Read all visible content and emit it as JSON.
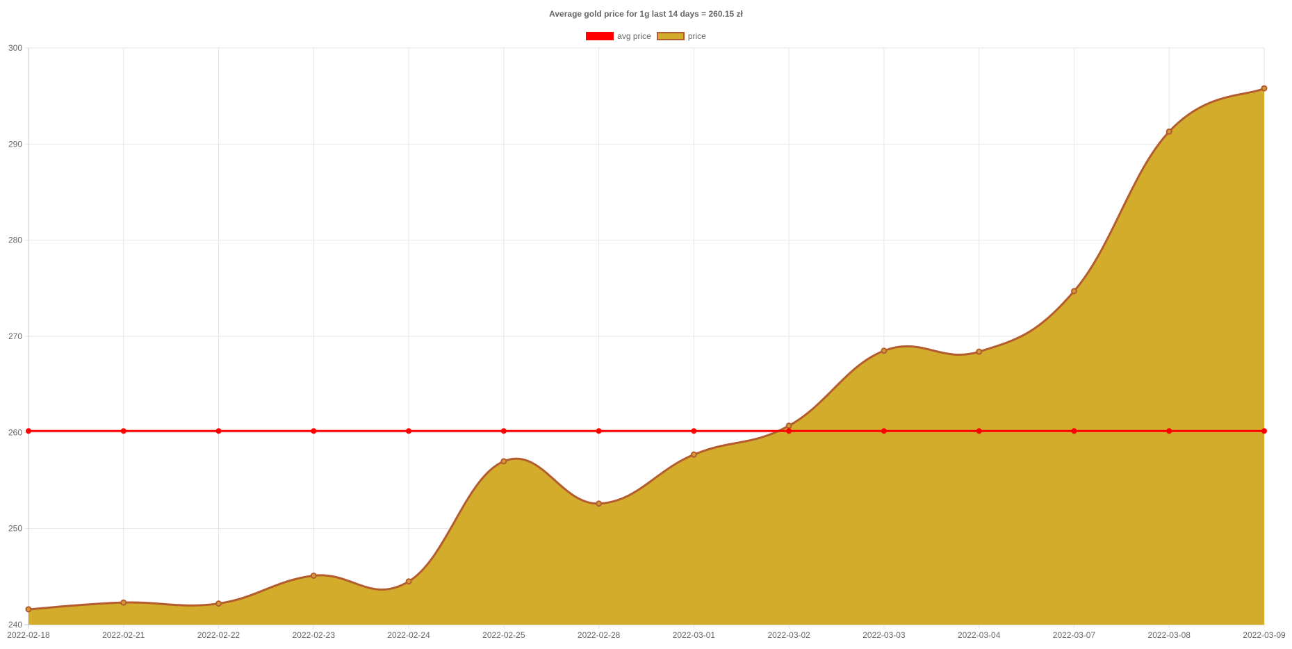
{
  "chart_data": {
    "type": "line",
    "title": "Average gold price for 1g last 14 days = 260.15 zł",
    "categories": [
      "2022-02-18",
      "2022-02-21",
      "2022-02-22",
      "2022-02-23",
      "2022-02-24",
      "2022-02-25",
      "2022-02-28",
      "2022-03-01",
      "2022-03-02",
      "2022-03-03",
      "2022-03-04",
      "2022-03-07",
      "2022-03-08",
      "2022-03-09"
    ],
    "series": [
      {
        "name": "avg price",
        "kind": "line",
        "color": "#ff0000",
        "values": [
          260.15,
          260.15,
          260.15,
          260.15,
          260.15,
          260.15,
          260.15,
          260.15,
          260.15,
          260.15,
          260.15,
          260.15,
          260.15,
          260.15
        ]
      },
      {
        "name": "price",
        "kind": "area",
        "color": "#b35c2e",
        "fill": "#d4ac2b",
        "values": [
          241.6,
          242.3,
          242.2,
          245.1,
          244.5,
          257.0,
          252.6,
          257.7,
          260.7,
          268.5,
          268.4,
          274.7,
          291.3,
          295.8
        ]
      }
    ],
    "ylim": [
      240,
      300
    ],
    "yticks": [
      240,
      250,
      260,
      270,
      280,
      290,
      300
    ],
    "grid": true,
    "legend": "top-center"
  }
}
